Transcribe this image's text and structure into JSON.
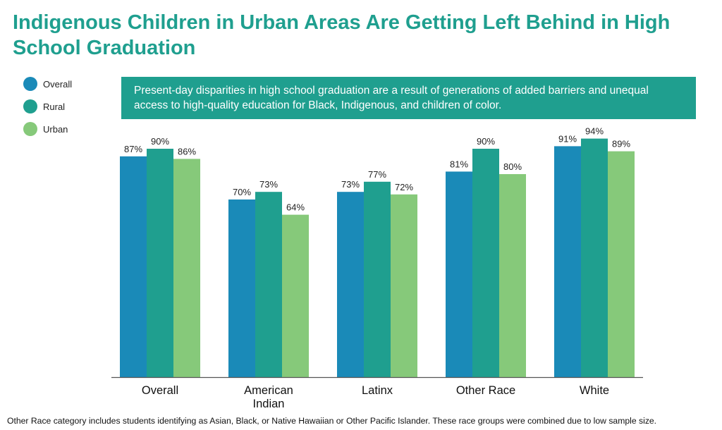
{
  "title": "Indigenous Children in Urban Areas Are Getting Left Behind in High School Graduation",
  "callout": "Present-day disparities in high school graduation are a result of generations of added barriers and unequal access to high-quality education for Black, Indigenous, and children of color.",
  "footnote": "Other Race category includes students identifying as Asian, Black, or Native Hawaiian or Other Pacific Islander. These race groups were combined due to low sample size.",
  "legend": [
    {
      "label": "Overall",
      "color": "#1a8ab8"
    },
    {
      "label": "Rural",
      "color": "#1f9f8f"
    },
    {
      "label": "Urban",
      "color": "#86c97a"
    }
  ],
  "chart_data": {
    "type": "bar",
    "categories": [
      [
        "Overall"
      ],
      [
        "American",
        "Indian"
      ],
      [
        "Latinx"
      ],
      [
        "Other Race"
      ],
      [
        "White"
      ]
    ],
    "series": [
      {
        "name": "Overall",
        "color": "#1a8ab8",
        "values": [
          87,
          70,
          73,
          81,
          91
        ]
      },
      {
        "name": "Rural",
        "color": "#1f9f8f",
        "values": [
          90,
          73,
          77,
          90,
          94
        ]
      },
      {
        "name": "Urban",
        "color": "#86c97a",
        "values": [
          86,
          64,
          72,
          80,
          89
        ]
      }
    ],
    "value_suffix": "%",
    "ylim": [
      0,
      100
    ],
    "grid": false,
    "legend_position": "top-left"
  }
}
